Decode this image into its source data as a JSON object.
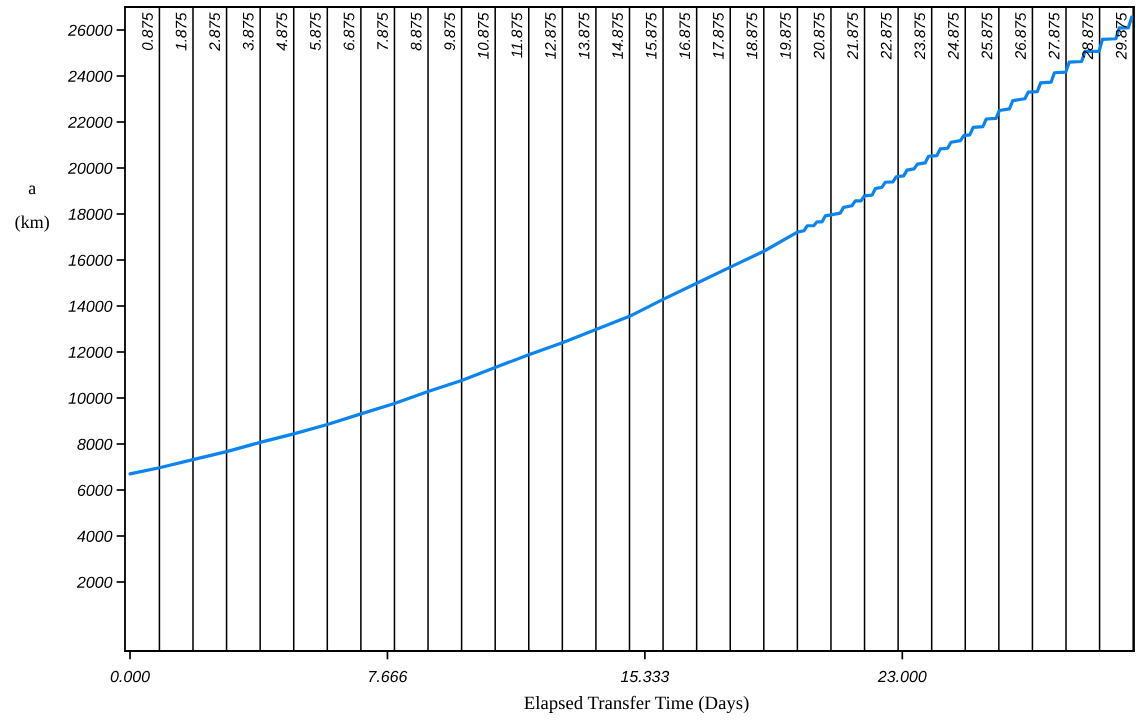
{
  "chart_data": {
    "type": "line",
    "xlabel": "Elapsed Transfer Time (Days)",
    "ylabel": "a\n(km)",
    "x": [
      0,
      0.875,
      1.875,
      2.875,
      3.875,
      4.875,
      5.875,
      6.875,
      7.875,
      8.875,
      9.875,
      10.875,
      11.875,
      12.875,
      13.875,
      14.875,
      15.875,
      16.875,
      17.875,
      18.875,
      19.875,
      20.07,
      20.17,
      20.36,
      20.46,
      20.61,
      20.71,
      21.15,
      21.25,
      21.5,
      21.6,
      21.77,
      21.87,
      22.1,
      22.2,
      22.39,
      22.49,
      22.72,
      22.82,
      23.04,
      23.14,
      23.35,
      23.45,
      23.68,
      23.78,
      24.03,
      24.13,
      24.35,
      24.45,
      24.73,
      24.83,
      25.01,
      25.11,
      25.4,
      25.5,
      25.79,
      25.89,
      26.19,
      26.29,
      26.65,
      26.75,
      27.02,
      27.12,
      27.43,
      27.53,
      27.87,
      27.97,
      28.34,
      28.44,
      28.86,
      28.96,
      29.36,
      29.46,
      29.73,
      29.83
    ],
    "series": [
      {
        "color": "#0a84f0",
        "values": [
          6700,
          6970,
          7320,
          7670,
          8070,
          8440,
          8850,
          9310,
          9760,
          10280,
          10760,
          11330,
          11880,
          12400,
          12980,
          13550,
          14290,
          14990,
          15690,
          16380,
          17210,
          17270,
          17490,
          17490,
          17660,
          17660,
          17920,
          18040,
          18290,
          18360,
          18570,
          18570,
          18790,
          18820,
          19110,
          19160,
          19380,
          19400,
          19620,
          19660,
          19910,
          19960,
          20170,
          20220,
          20510,
          20540,
          20830,
          20860,
          21120,
          21190,
          21410,
          21440,
          21770,
          21800,
          22130,
          22160,
          22500,
          22570,
          22930,
          23010,
          23300,
          23320,
          23700,
          23730,
          24140,
          24170,
          24600,
          24630,
          25070,
          25070,
          25590,
          25620,
          26090,
          26090,
          26560
        ]
      }
    ],
    "xlim": [
      -0.15,
      29.9
    ],
    "ylim": [
      -1000,
      27000
    ],
    "xticks": [
      {
        "value": 0,
        "label": "0.000"
      },
      {
        "value": 7.666,
        "label": "7.666"
      },
      {
        "value": 15.333,
        "label": "15.333"
      },
      {
        "value": 23.0,
        "label": "23.000"
      }
    ],
    "yticks": [
      2000,
      4000,
      6000,
      8000,
      10000,
      12000,
      14000,
      16000,
      18000,
      20000,
      22000,
      24000,
      26000
    ],
    "ref_lines": [
      {
        "axis": "x",
        "value": 0.875,
        "label": "0.875"
      },
      {
        "axis": "x",
        "value": 1.875,
        "label": "1.875"
      },
      {
        "axis": "x",
        "value": 2.875,
        "label": "2.875"
      },
      {
        "axis": "x",
        "value": 3.875,
        "label": "3.875"
      },
      {
        "axis": "x",
        "value": 4.875,
        "label": "4.875"
      },
      {
        "axis": "x",
        "value": 5.875,
        "label": "5.875"
      },
      {
        "axis": "x",
        "value": 6.875,
        "label": "6.875"
      },
      {
        "axis": "x",
        "value": 7.875,
        "label": "7.875"
      },
      {
        "axis": "x",
        "value": 8.875,
        "label": "8.875"
      },
      {
        "axis": "x",
        "value": 9.875,
        "label": "9.875"
      },
      {
        "axis": "x",
        "value": 10.875,
        "label": "10.875"
      },
      {
        "axis": "x",
        "value": 11.875,
        "label": "11.875"
      },
      {
        "axis": "x",
        "value": 12.875,
        "label": "12.875"
      },
      {
        "axis": "x",
        "value": 13.875,
        "label": "13.875"
      },
      {
        "axis": "x",
        "value": 14.875,
        "label": "14.875"
      },
      {
        "axis": "x",
        "value": 15.875,
        "label": "15.875"
      },
      {
        "axis": "x",
        "value": 16.875,
        "label": "16.875"
      },
      {
        "axis": "x",
        "value": 17.875,
        "label": "17.875"
      },
      {
        "axis": "x",
        "value": 18.875,
        "label": "18.875"
      },
      {
        "axis": "x",
        "value": 19.875,
        "label": "19.875"
      },
      {
        "axis": "x",
        "value": 20.875,
        "label": "20.875"
      },
      {
        "axis": "x",
        "value": 21.875,
        "label": "21.875"
      },
      {
        "axis": "x",
        "value": 22.875,
        "label": "22.875"
      },
      {
        "axis": "x",
        "value": 23.875,
        "label": "23.875"
      },
      {
        "axis": "x",
        "value": 24.875,
        "label": "24.875"
      },
      {
        "axis": "x",
        "value": 25.875,
        "label": "25.875"
      },
      {
        "axis": "x",
        "value": 26.875,
        "label": "26.875"
      },
      {
        "axis": "x",
        "value": 27.875,
        "label": "27.875"
      },
      {
        "axis": "x",
        "value": 28.875,
        "label": "28.875"
      },
      {
        "axis": "x",
        "value": 29.875,
        "label": "29.875"
      }
    ]
  }
}
